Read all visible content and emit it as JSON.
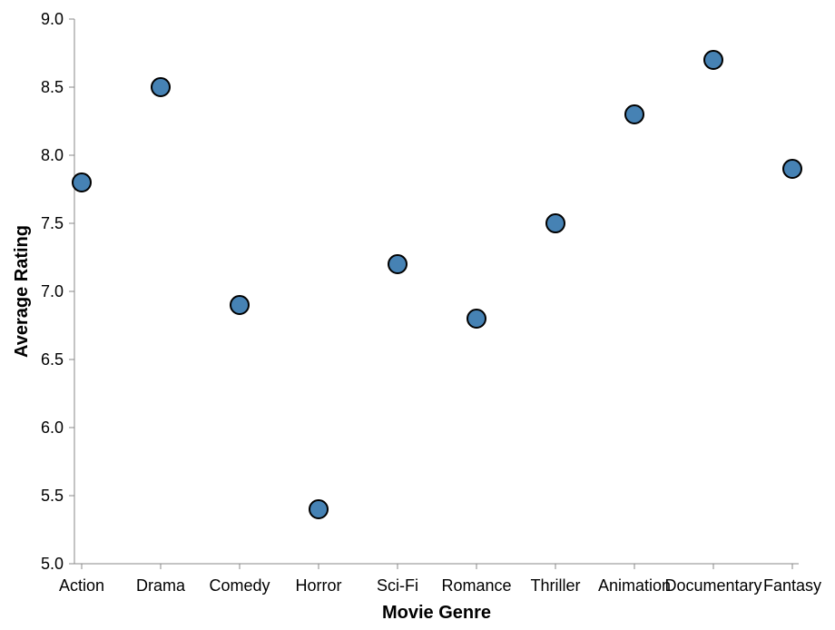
{
  "chart_data": {
    "type": "scatter",
    "title": "",
    "xlabel": "Movie Genre",
    "ylabel": "Average Rating",
    "categories": [
      "Action",
      "Drama",
      "Comedy",
      "Horror",
      "Sci-Fi",
      "Romance",
      "Thriller",
      "Animation",
      "Documentary",
      "Fantasy"
    ],
    "values": [
      7.8,
      8.5,
      6.9,
      5.4,
      7.2,
      6.8,
      7.5,
      8.3,
      8.7,
      7.9
    ],
    "ylim": [
      5.0,
      9.0
    ],
    "yticks": [
      "5.0",
      "5.5",
      "6.0",
      "6.5",
      "7.0",
      "7.5",
      "8.0",
      "8.5",
      "9.0"
    ],
    "grid": false,
    "legend": "none",
    "colors": {
      "point_fill": "#4682b4",
      "point_stroke": "#000000",
      "axis": "#888888",
      "text": "#000000"
    }
  }
}
